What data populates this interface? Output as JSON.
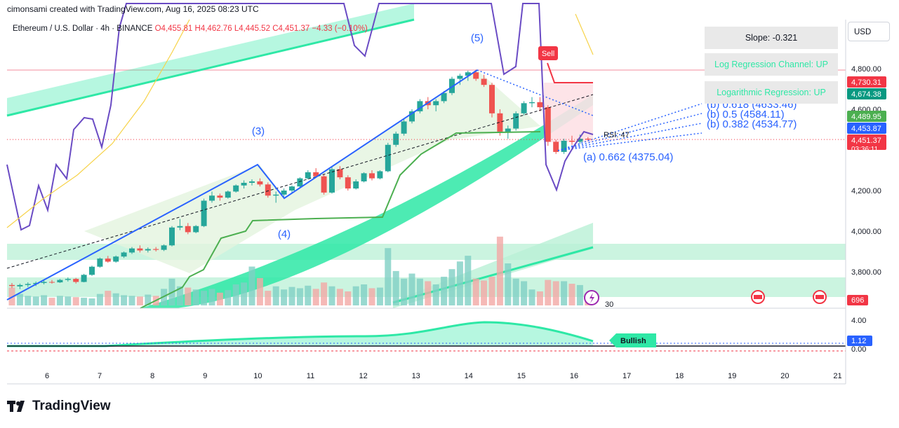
{
  "header": {
    "attribution": "cimonsami created with TradingView.com, Aug 16, 2025 08:23 UTC",
    "symbol_line": "Ethereum / U.S. Dollar · 4h · BINANCE",
    "ohlc": {
      "o": "O4,455.81",
      "h": "H4,462.76",
      "l": "L4,445.52",
      "c": "C4,451.37",
      "chg": "−4.33 (−0.10%)"
    }
  },
  "currency_button": "USD",
  "info_boxes": {
    "slope": "Slope: -0.321",
    "log_channel": "Log Regression Channel: UP",
    "log_regression": "Logarithmic Regression: UP"
  },
  "colors": {
    "up": "#26a69a",
    "down": "#ef5350",
    "wave": "#2962ff",
    "teal": "#2ee8a6",
    "purple": "#6a4bc4",
    "green_line": "#4caf50"
  },
  "annotations": {
    "wave3": "(3)",
    "wave4": "(4)",
    "wave5": "(5)",
    "sell": "Sell",
    "fib_618": "(b) 0.618 (4633.46)",
    "fib_5": "(b) 0.5 (4584.11)",
    "fib_382": "(b) 0.382 (4534.77)",
    "fib_662": "(a) 0.662 (4375.04)",
    "rsi": "RSI: 47",
    "rsi_level": "30",
    "bullish": "Bullish"
  },
  "price_badges": [
    {
      "text": "4,730.31",
      "color": "#f23645",
      "value": 4730.31
    },
    {
      "text": "4,674.38",
      "color": "#089981",
      "value": 4674.38
    },
    {
      "text": "4,489.95",
      "color": "#4caf50",
      "value": 4489.95
    },
    {
      "text": "4,453.87",
      "color": "#2962ff",
      "value": 4453.87
    },
    {
      "text": "4,451.37",
      "color": "#f23645",
      "value": 4451.37,
      "sub": "03:36:11"
    }
  ],
  "volume_badge": {
    "text": "696",
    "color": "#f23645"
  },
  "osc_badge": {
    "text": "1.12",
    "color": "#2962ff"
  },
  "logo_text": "TradingView",
  "chart_data": {
    "type": "candlestick",
    "y_ticks": [
      4800,
      4600,
      4200,
      4000,
      3800
    ],
    "osc_ticks": [
      "4.00",
      "0.00"
    ],
    "x_ticks": [
      "6",
      "7",
      "8",
      "9",
      "10",
      "11",
      "12",
      "13",
      "14",
      "15",
      "16",
      "17",
      "18",
      "19",
      "20",
      "21"
    ],
    "candles": [
      [
        3735,
        3745,
        3720,
        3730
      ],
      [
        3728,
        3742,
        3715,
        3735
      ],
      [
        3735,
        3748,
        3725,
        3740
      ],
      [
        3740,
        3752,
        3730,
        3745
      ],
      [
        3745,
        3758,
        3738,
        3750
      ],
      [
        3750,
        3760,
        3742,
        3748
      ],
      [
        3748,
        3765,
        3745,
        3760
      ],
      [
        3760,
        3772,
        3752,
        3765
      ],
      [
        3765,
        3770,
        3742,
        3750
      ],
      [
        3750,
        3790,
        3748,
        3785
      ],
      [
        3785,
        3830,
        3780,
        3825
      ],
      [
        3825,
        3870,
        3820,
        3865
      ],
      [
        3865,
        3878,
        3845,
        3850
      ],
      [
        3850,
        3880,
        3845,
        3875
      ],
      [
        3875,
        3900,
        3868,
        3895
      ],
      [
        3895,
        3922,
        3888,
        3915
      ],
      [
        3915,
        3930,
        3895,
        3905
      ],
      [
        3905,
        3920,
        3895,
        3912
      ],
      [
        3912,
        3922,
        3900,
        3908
      ],
      [
        3908,
        3935,
        3902,
        3930
      ],
      [
        3930,
        4025,
        3925,
        4018
      ],
      [
        4018,
        4060,
        4005,
        4025
      ],
      [
        4025,
        4040,
        3985,
        3995
      ],
      [
        3995,
        4030,
        3990,
        4025
      ],
      [
        4025,
        4160,
        4020,
        4150
      ],
      [
        4150,
        4195,
        4140,
        4175
      ],
      [
        4175,
        4185,
        4150,
        4165
      ],
      [
        4165,
        4200,
        4160,
        4195
      ],
      [
        4195,
        4230,
        4190,
        4225
      ],
      [
        4225,
        4250,
        4210,
        4238
      ],
      [
        4238,
        4255,
        4225,
        4245
      ],
      [
        4245,
        4260,
        4220,
        4230
      ],
      [
        4230,
        4240,
        4165,
        4175
      ],
      [
        4175,
        4195,
        4140,
        4180
      ],
      [
        4180,
        4210,
        4170,
        4200
      ],
      [
        4200,
        4225,
        4190,
        4220
      ],
      [
        4220,
        4265,
        4215,
        4260
      ],
      [
        4260,
        4300,
        4255,
        4290
      ],
      [
        4290,
        4310,
        4265,
        4270
      ],
      [
        4270,
        4280,
        4180,
        4190
      ],
      [
        4190,
        4315,
        4185,
        4305
      ],
      [
        4305,
        4320,
        4255,
        4265
      ],
      [
        4265,
        4275,
        4200,
        4210
      ],
      [
        4210,
        4255,
        4205,
        4245
      ],
      [
        4245,
        4290,
        4240,
        4285
      ],
      [
        4285,
        4300,
        4250,
        4260
      ],
      [
        4260,
        4300,
        4255,
        4295
      ],
      [
        4295,
        4435,
        4290,
        4425
      ],
      [
        4425,
        4490,
        4415,
        4480
      ],
      [
        4480,
        4550,
        4470,
        4540
      ],
      [
        4540,
        4600,
        4530,
        4590
      ],
      [
        4590,
        4650,
        4580,
        4640
      ],
      [
        4640,
        4660,
        4600,
        4620
      ],
      [
        4620,
        4650,
        4590,
        4640
      ],
      [
        4640,
        4690,
        4630,
        4680
      ],
      [
        4680,
        4760,
        4670,
        4750
      ],
      [
        4750,
        4775,
        4720,
        4765
      ],
      [
        4765,
        4790,
        4740,
        4782
      ],
      [
        4782,
        4795,
        4740,
        4750
      ],
      [
        4750,
        4770,
        4710,
        4720
      ],
      [
        4720,
        4730,
        4560,
        4580
      ],
      [
        4580,
        4600,
        4470,
        4490
      ],
      [
        4490,
        4520,
        4455,
        4505
      ],
      [
        4505,
        4590,
        4495,
        4580
      ],
      [
        4580,
        4640,
        4570,
        4630
      ],
      [
        4630,
        4660,
        4610,
        4635
      ],
      [
        4635,
        4660,
        4590,
        4610
      ],
      [
        4610,
        4620,
        4420,
        4440
      ],
      [
        4440,
        4450,
        4380,
        4390
      ],
      [
        4390,
        4455,
        4380,
        4445
      ],
      [
        4445,
        4470,
        4425,
        4440
      ],
      [
        4440,
        4475,
        4430,
        4455
      ],
      [
        4455,
        4463,
        4445,
        4451
      ]
    ],
    "volumes": [
      280,
      180,
      150,
      140,
      160,
      120,
      150,
      140,
      130,
      120,
      110,
      180,
      230,
      190,
      160,
      150,
      140,
      170,
      150,
      260,
      420,
      300,
      280,
      250,
      230,
      260,
      200,
      240,
      330,
      360,
      610,
      430,
      230,
      300,
      250,
      290,
      270,
      310,
      260,
      360,
      300,
      260,
      220,
      300,
      330,
      270,
      280,
      900,
      540,
      420,
      500,
      420,
      380,
      330,
      450,
      570,
      690,
      780,
      420,
      390,
      450,
      1080,
      660,
      420,
      380,
      250,
      220,
      400,
      380,
      380,
      340,
      320,
      180
    ]
  }
}
